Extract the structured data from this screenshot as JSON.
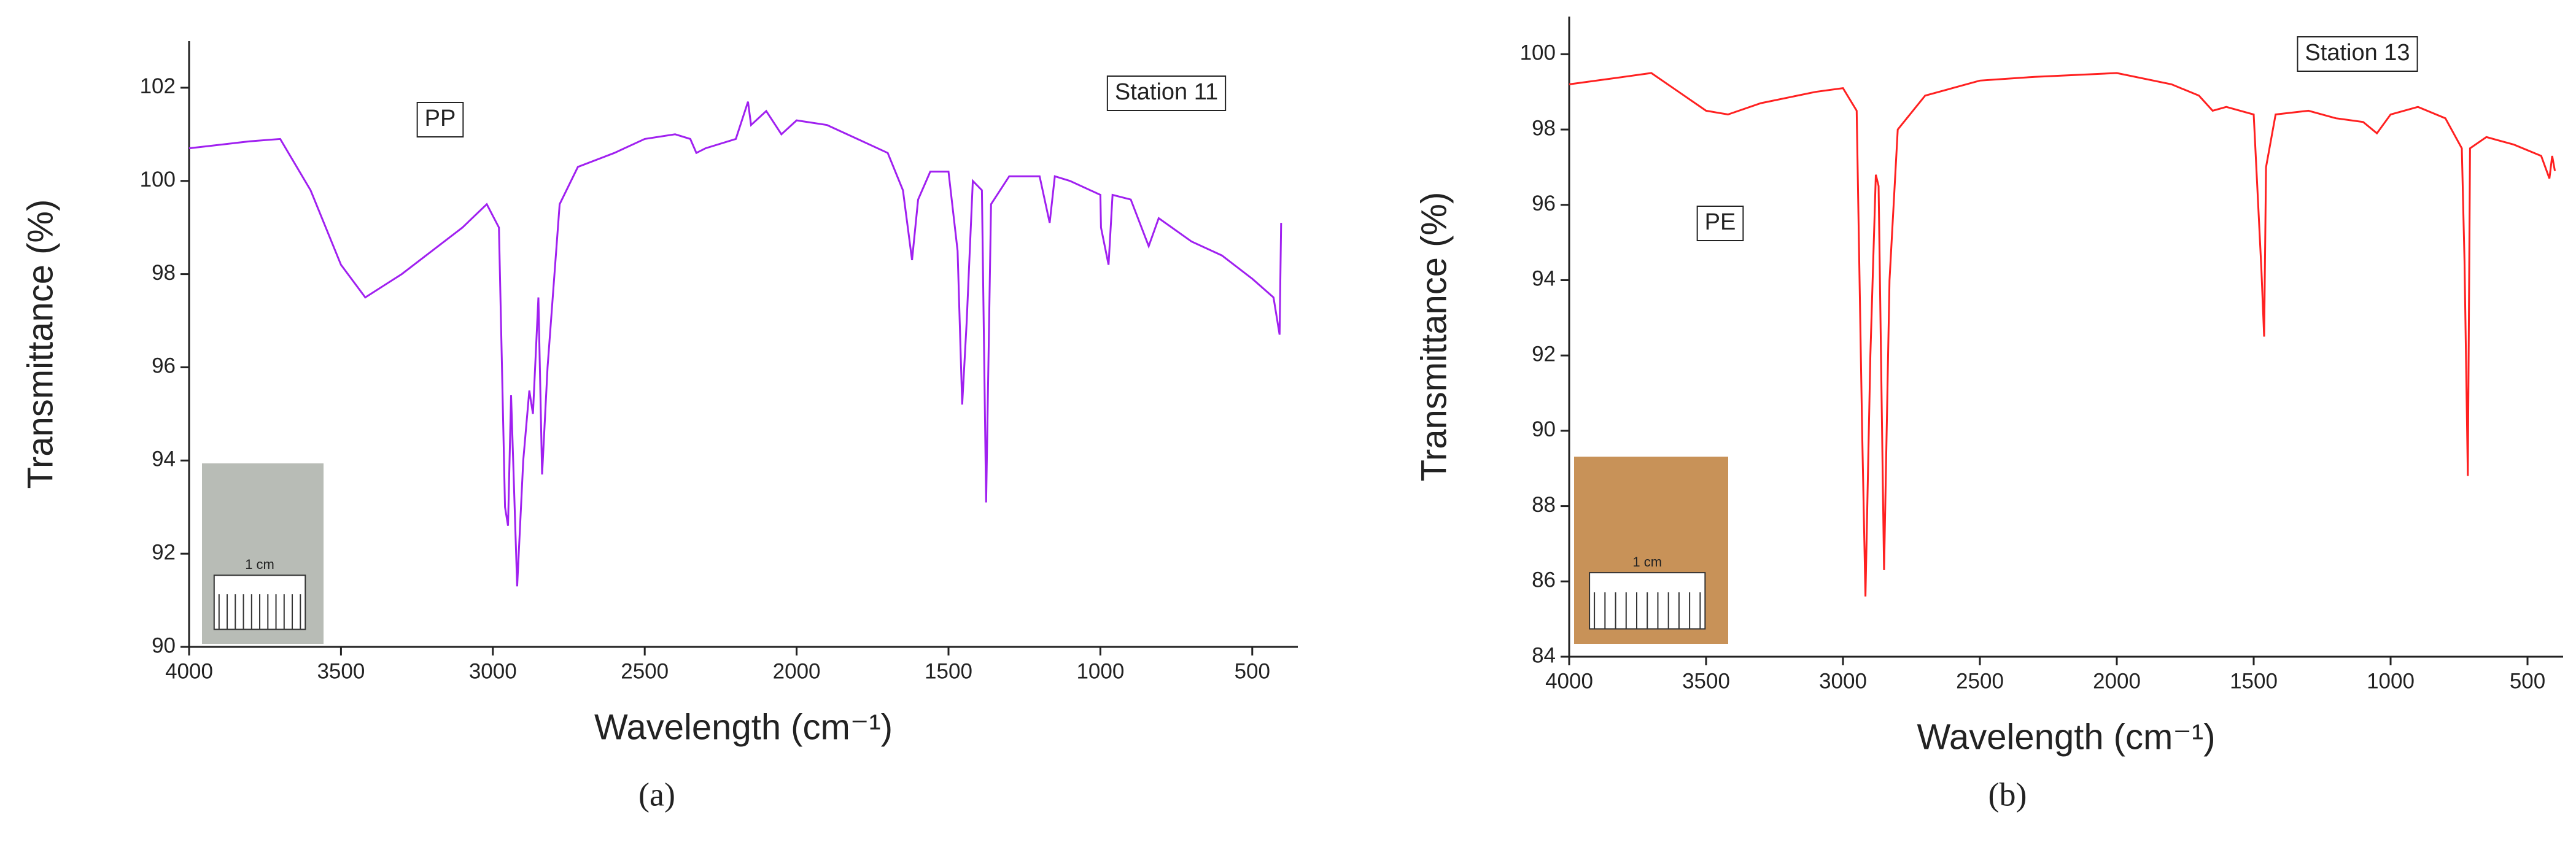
{
  "chart_data": [
    {
      "type": "line",
      "caption": "(a)",
      "y_label": "Transmittance (%)",
      "x_label": "Wavelength (cm⁻¹)",
      "annotations": [
        "PP",
        "Station 11"
      ],
      "inset_label": "1 cm",
      "color": "#a020f0",
      "xlim": [
        4000,
        350
      ],
      "xticks": [
        4000,
        3500,
        3000,
        2500,
        2000,
        1500,
        1000,
        500
      ],
      "ylim": [
        90,
        103
      ],
      "yticks": [
        90,
        92,
        94,
        96,
        98,
        100,
        102
      ],
      "x": [
        4000,
        3800,
        3700,
        3600,
        3500,
        3420,
        3300,
        3200,
        3100,
        3020,
        2980,
        2960,
        2950,
        2940,
        2920,
        2900,
        2880,
        2868,
        2850,
        2838,
        2820,
        2780,
        2720,
        2600,
        2500,
        2400,
        2350,
        2330,
        2300,
        2200,
        2160,
        2150,
        2100,
        2050,
        2000,
        1900,
        1800,
        1700,
        1650,
        1620,
        1600,
        1560,
        1500,
        1470,
        1455,
        1440,
        1420,
        1390,
        1376,
        1360,
        1300,
        1200,
        1167,
        1150,
        1100,
        1000,
        998,
        973,
        960,
        900,
        841,
        808,
        700,
        600,
        500,
        430,
        410,
        405
      ],
      "values": [
        100.7,
        100.85,
        100.9,
        99.8,
        98.2,
        97.5,
        98.0,
        98.5,
        99.0,
        99.5,
        99.0,
        93,
        92.6,
        95.4,
        91.3,
        94,
        95.5,
        95.0,
        97.5,
        93.7,
        96,
        99.5,
        100.3,
        100.6,
        100.9,
        101.0,
        100.9,
        100.6,
        100.7,
        100.9,
        101.7,
        101.2,
        101.5,
        101.0,
        101.3,
        101.2,
        100.9,
        100.6,
        99.8,
        98.3,
        99.6,
        100.2,
        100.2,
        98.5,
        95.2,
        97,
        100.0,
        99.8,
        93.1,
        99.5,
        100.1,
        100.1,
        99.1,
        100.1,
        100.0,
        99.7,
        99.0,
        98.2,
        99.7,
        99.6,
        98.6,
        99.2,
        98.7,
        98.4,
        97.9,
        97.5,
        96.7,
        99.1
      ]
    },
    {
      "type": "line",
      "caption": "(b)",
      "y_label": "Transmittance (%)",
      "x_label": "Wavelength (cm⁻¹)",
      "annotations": [
        "PE",
        "Station 13"
      ],
      "inset_label": "1 cm",
      "color": "#ff2020",
      "xlim": [
        4000,
        370
      ],
      "xticks": [
        4000,
        3500,
        3000,
        2500,
        2000,
        1500,
        1000,
        500
      ],
      "ylim": [
        84,
        101
      ],
      "yticks": [
        84,
        86,
        88,
        90,
        92,
        94,
        96,
        98,
        100
      ],
      "x": [
        4000,
        3800,
        3700,
        3600,
        3500,
        3420,
        3300,
        3100,
        3000,
        2950,
        2930,
        2918,
        2900,
        2880,
        2870,
        2850,
        2830,
        2800,
        2700,
        2600,
        2500,
        2300,
        2000,
        1800,
        1700,
        1650,
        1600,
        1500,
        1472,
        1462,
        1455,
        1420,
        1300,
        1200,
        1100,
        1050,
        1000,
        900,
        800,
        740,
        730,
        718,
        710,
        650,
        550,
        450,
        420,
        410,
        400
      ],
      "values": [
        99.2,
        99.4,
        99.5,
        99.0,
        98.5,
        98.4,
        98.7,
        99.0,
        99.1,
        98.5,
        90,
        85.6,
        92,
        96.8,
        96.5,
        86.3,
        94,
        98.0,
        98.9,
        99.1,
        99.3,
        99.4,
        99.5,
        99.2,
        98.9,
        98.5,
        98.6,
        98.4,
        94.3,
        92.5,
        97,
        98.4,
        98.5,
        98.3,
        98.2,
        97.9,
        98.4,
        98.6,
        98.3,
        97.5,
        94.5,
        88.8,
        97.5,
        97.8,
        97.6,
        97.3,
        96.7,
        97.3,
        96.9
      ]
    }
  ]
}
